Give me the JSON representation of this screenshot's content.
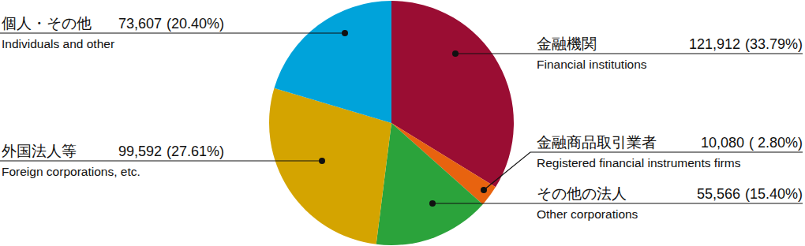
{
  "chart_data": {
    "type": "pie",
    "categories": [
      "金融機関",
      "金融商品取引業者",
      "その他の法人",
      "外国法人等",
      "個人・その他"
    ],
    "labels_en": [
      "Financial institutions",
      "Registered financial instruments firms",
      "Other corporations",
      "Foreign corporations, etc.",
      "Individuals and other"
    ],
    "values": [
      121912,
      10080,
      55566,
      99592,
      73607
    ],
    "value_labels": [
      "121,912",
      "10,080",
      "55,566",
      "99,592",
      "73,607"
    ],
    "percentage_labels": [
      "(33.79%)",
      "( 2.80%)",
      "(15.40%)",
      "(27.61%)",
      "(20.40%)"
    ],
    "colors": [
      "#9a0d33",
      "#e8630f",
      "#2ba33b",
      "#d4a400",
      "#00a3da"
    ],
    "data_labels": true
  }
}
